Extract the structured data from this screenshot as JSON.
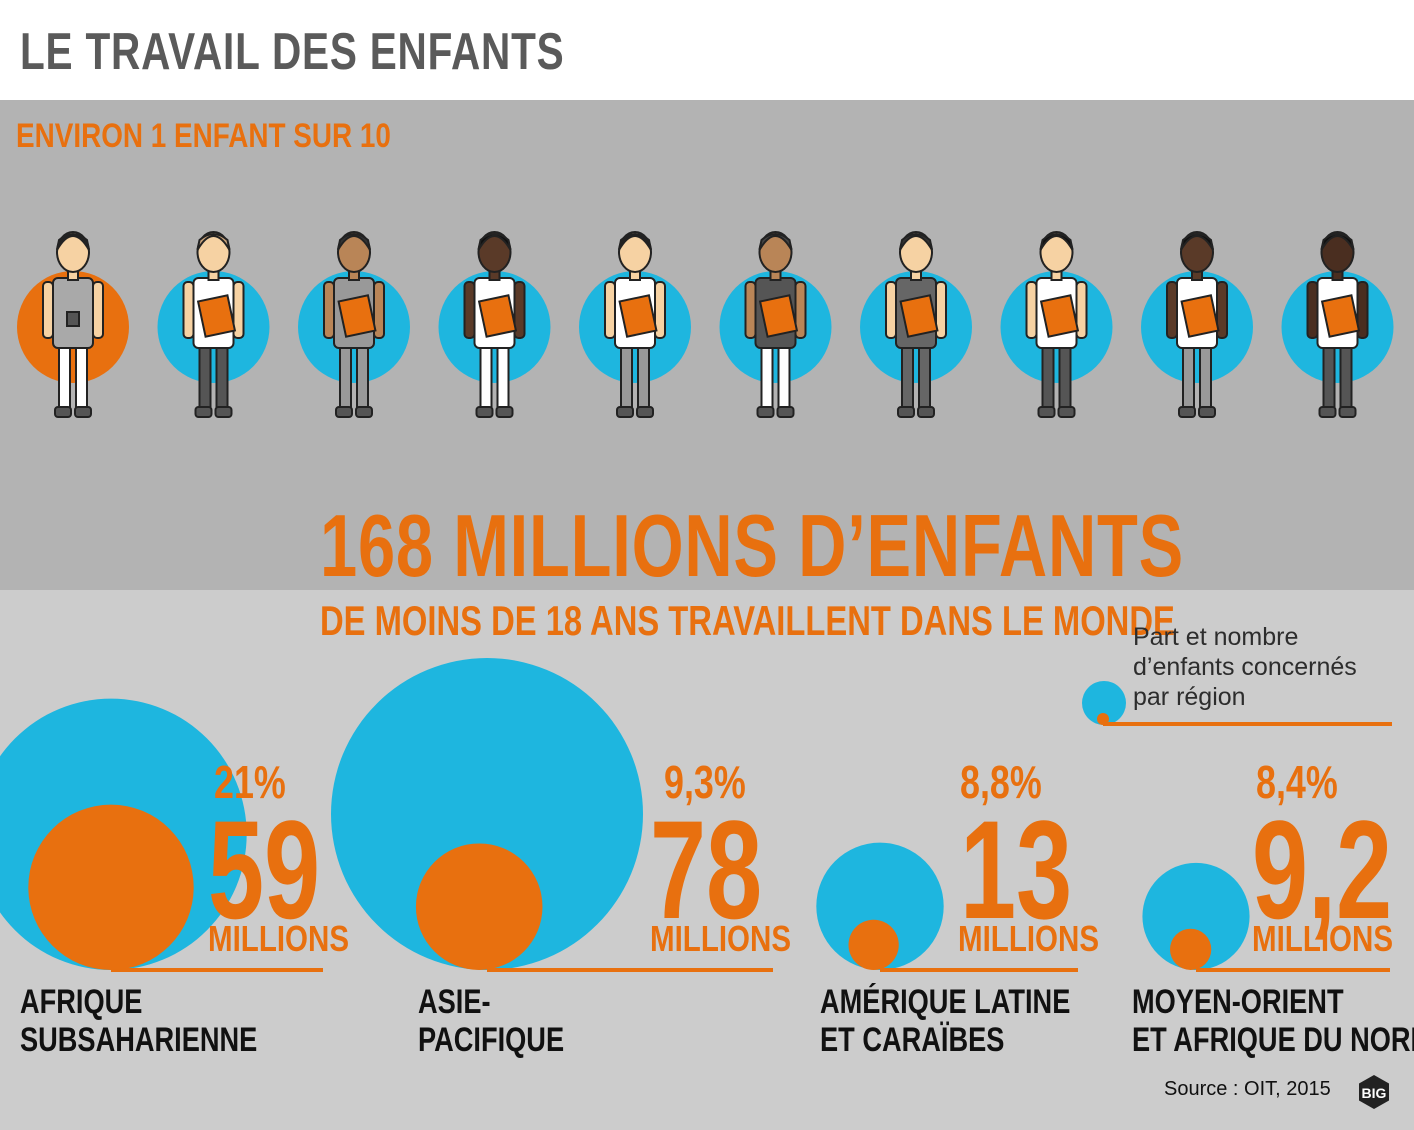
{
  "title": "LE TRAVAIL DES ENFANTS",
  "subhead": "ENVIRON 1 ENFANT SUR 10",
  "headline": "168 MILLIONS D’ENFANTS",
  "subline": "DE MOINS DE 18 ANS TRAVAILLENT DANS LE MONDE",
  "legend": {
    "lines": [
      "Part et nombre",
      "d’enfants concernés",
      "par région"
    ]
  },
  "source": "Source : OIT, 2015",
  "logo_text": "BIG",
  "colors": {
    "orange": "#e8700f",
    "blue": "#1eb6df",
    "dark_gray": "#5a5a5a",
    "band_top": "#b3b3b3",
    "band_bottom": "#cccccc"
  },
  "children": [
    {
      "highlight": true,
      "skin": "#f6d2a3",
      "hair": "#222222",
      "top": "#a9a9a9",
      "bottom": "#ffffff"
    },
    {
      "highlight": false,
      "skin": "#f6d2a3",
      "hair": "#c8a27a",
      "top": "#ffffff",
      "bottom": "#555555"
    },
    {
      "highlight": false,
      "skin": "#b98557",
      "hair": "#333333",
      "top": "#999999",
      "bottom": "#999999"
    },
    {
      "highlight": false,
      "skin": "#5a3a28",
      "hair": "#111111",
      "top": "#ffffff",
      "bottom": "#ffffff"
    },
    {
      "highlight": false,
      "skin": "#f6d2a3",
      "hair": "#222222",
      "top": "#ffffff",
      "bottom": "#999999"
    },
    {
      "highlight": false,
      "skin": "#b98557",
      "hair": "#444444",
      "top": "#555555",
      "bottom": "#ffffff"
    },
    {
      "highlight": false,
      "skin": "#f6d2a3",
      "hair": "#333333",
      "top": "#666666",
      "bottom": "#666666"
    },
    {
      "highlight": false,
      "skin": "#f6d2a3",
      "hair": "#111111",
      "top": "#ffffff",
      "bottom": "#555555"
    },
    {
      "highlight": false,
      "skin": "#5a3a28",
      "hair": "#111111",
      "top": "#ffffff",
      "bottom": "#999999"
    },
    {
      "highlight": false,
      "skin": "#4a2e20",
      "hair": "#111111",
      "top": "#ffffff",
      "bottom": "#555555"
    }
  ],
  "chart_data": {
    "type": "bubble",
    "title": "168 MILLIONS D’ENFANTS",
    "categories": [
      "AFRIQUE SUBSAHARIENNE",
      "ASIE-PACIFIQUE",
      "AMÉRIQUE LATINE ET CARAÏBES",
      "MOYEN-ORIENT ET AFRIQUE DU NORD"
    ],
    "regions": [
      {
        "name_lines": [
          "AFRIQUE",
          "SUBSAHARIENNE"
        ],
        "share_label": "21%",
        "share": 21,
        "count_label": "59",
        "count_millions": 59,
        "unit": "MILLIONS"
      },
      {
        "name_lines": [
          "ASIE-",
          "PACIFIQUE"
        ],
        "share_label": "9,3%",
        "share": 9.3,
        "count_label": "78",
        "count_millions": 78,
        "unit": "MILLIONS"
      },
      {
        "name_lines": [
          "AMÉRIQUE LATINE",
          "ET CARAÏBES"
        ],
        "share_label": "8,8%",
        "share": 8.8,
        "count_label": "13",
        "count_millions": 13,
        "unit": "MILLIONS"
      },
      {
        "name_lines": [
          "MOYEN-ORIENT",
          "ET AFRIQUE DU NORD"
        ],
        "share_label": "8,4%",
        "share": 8.4,
        "count_label": "9,2",
        "count_millions": 9.2,
        "unit": "MILLIONS"
      }
    ]
  }
}
